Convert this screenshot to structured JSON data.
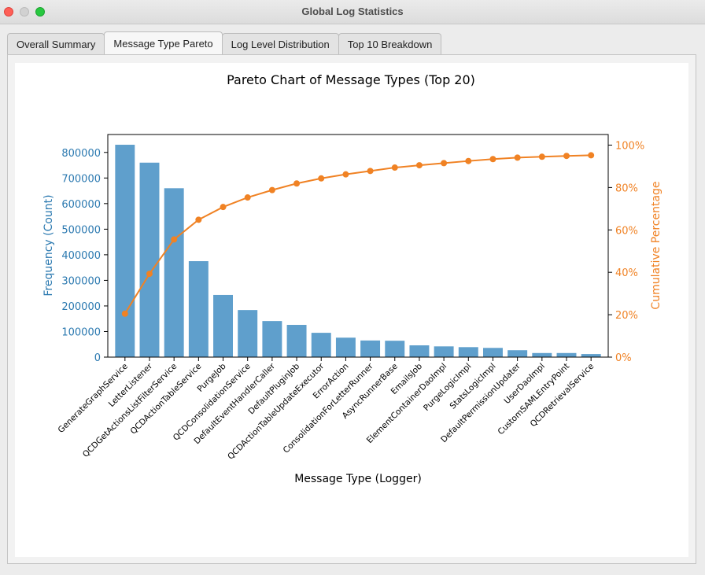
{
  "window": {
    "title": "Global Log Statistics"
  },
  "tabs": [
    {
      "label": "Overall Summary"
    },
    {
      "label": "Message Type Pareto"
    },
    {
      "label": "Log Level Distribution"
    },
    {
      "label": "Top 10 Breakdown"
    }
  ],
  "colors": {
    "bar": "#5f9fcc",
    "line": "#f08224",
    "left_axis": "#2b79b0",
    "right_axis": "#f08224"
  },
  "chart_data": {
    "type": "bar",
    "title": "Pareto Chart of Message Types (Top 20)",
    "xlabel": "Message Type (Logger)",
    "ylabel": "Frequency (Count)",
    "y2label": "Cumulative Percentage",
    "ylim": [
      0,
      870000
    ],
    "y2lim": [
      0,
      105
    ],
    "yticks": [
      0,
      100000,
      200000,
      300000,
      400000,
      500000,
      600000,
      700000,
      800000
    ],
    "y2ticks": [
      "0%",
      "20%",
      "40%",
      "60%",
      "80%",
      "100%"
    ],
    "categories": [
      "GenerateGraphService",
      "LetterListener",
      "QCDGetActionsListFilterService",
      "QCDActionTableService",
      "PurgeJob",
      "QCDConsolidationService",
      "DefaultEventHandlerCaller",
      "DefaultPluginJob",
      "QCDActionTableUpdateExecutor",
      "ErrorAction",
      "ConsolidationForLetterRunner",
      "AsyncRunnerBase",
      "EmailsJob",
      "ElementContainerDaoImpl",
      "PurgeLogicImpl",
      "StatsLogicImpl",
      "DefaultPermissionUpdater",
      "UserDaoImpl",
      "CustomSAMLEntryPoint",
      "QCDRetrievalService"
    ],
    "series": [
      {
        "type": "bar",
        "values": [
          830000,
          760000,
          660000,
          375000,
          243000,
          184000,
          141000,
          126000,
          95000,
          76000,
          65000,
          64000,
          46000,
          42000,
          39000,
          36000,
          27000,
          16000,
          16000,
          12000
        ]
      },
      {
        "type": "line",
        "axis": "right",
        "values": [
          20.5,
          39.3,
          55.5,
          64.8,
          70.8,
          75.3,
          78.8,
          81.9,
          84.3,
          86.2,
          87.8,
          89.4,
          90.5,
          91.5,
          92.5,
          93.4,
          94.1,
          94.5,
          94.9,
          95.2
        ]
      }
    ],
    "grid": false,
    "legend": "none"
  }
}
